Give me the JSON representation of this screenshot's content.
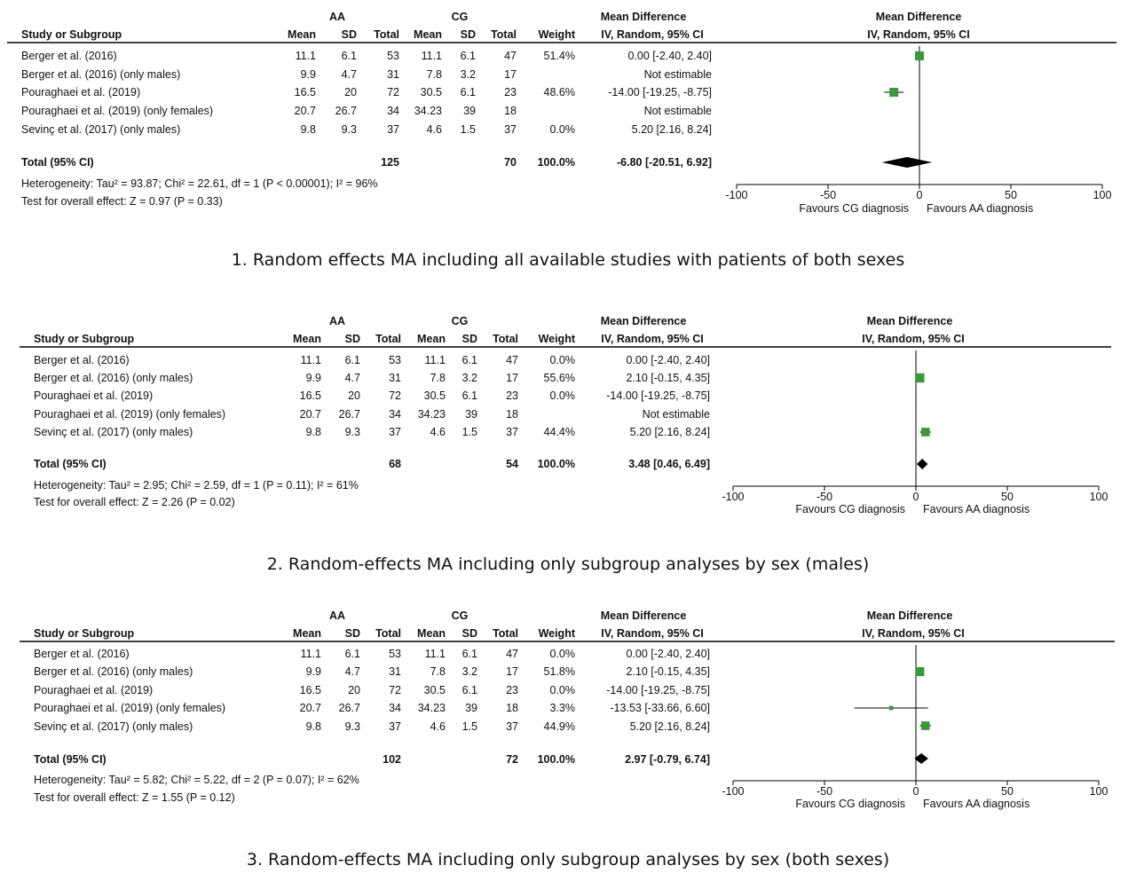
{
  "chart_data": [
    {
      "type": "forest",
      "caption": "1. Random effects MA including all available studies with patients of both sexes",
      "header": {
        "group_a": "AA",
        "group_b": "CG",
        "study_col": "Study or Subgroup",
        "mean": "Mean",
        "sd": "SD",
        "total": "Total",
        "weight": "Weight",
        "md_title": "Mean Difference",
        "md_method": "IV, Random, 95% CI"
      },
      "studies": [
        {
          "name": "Berger et al. (2016)",
          "a_mean": "11.1",
          "a_sd": "6.1",
          "a_total": "53",
          "b_mean": "11.1",
          "b_sd": "6.1",
          "b_total": "47",
          "weight": "51.4%",
          "ci_text": "0.00 [-2.40, 2.40]",
          "md": 0.0,
          "lo": -2.4,
          "hi": 2.4,
          "w": 51.4
        },
        {
          "name": "Berger et al. (2016) (only males)",
          "a_mean": "9.9",
          "a_sd": "4.7",
          "a_total": "31",
          "b_mean": "7.8",
          "b_sd": "3.2",
          "b_total": "17",
          "weight": "",
          "ci_text": "Not estimable",
          "md": null,
          "lo": null,
          "hi": null,
          "w": 0
        },
        {
          "name": "Pouraghaei et al. (2019)",
          "a_mean": "16.5",
          "a_sd": "20",
          "a_total": "72",
          "b_mean": "30.5",
          "b_sd": "6.1",
          "b_total": "23",
          "weight": "48.6%",
          "ci_text": "-14.00 [-19.25, -8.75]",
          "md": -14.0,
          "lo": -19.25,
          "hi": -8.75,
          "w": 48.6
        },
        {
          "name": "Pouraghaei et al. (2019) (only females)",
          "a_mean": "20.7",
          "a_sd": "26.7",
          "a_total": "34",
          "b_mean": "34.23",
          "b_sd": "39",
          "b_total": "18",
          "weight": "",
          "ci_text": "Not estimable",
          "md": null,
          "lo": null,
          "hi": null,
          "w": 0
        },
        {
          "name": "Sevinç et al. (2017) (only males)",
          "a_mean": "9.8",
          "a_sd": "9.3",
          "a_total": "37",
          "b_mean": "4.6",
          "b_sd": "1.5",
          "b_total": "37",
          "weight": "0.0%",
          "ci_text": "5.20 [2.16, 8.24]",
          "md": null,
          "lo": null,
          "hi": null,
          "w": 0
        }
      ],
      "total": {
        "label": "Total (95% CI)",
        "a_total": "125",
        "b_total": "70",
        "weight": "100.0%",
        "ci_text": "-6.80 [-20.51, 6.92]",
        "md": -6.8,
        "lo": -20.51,
        "hi": 6.92
      },
      "heterogeneity": "Heterogeneity: Tau² = 93.87; Chi² = 22.61, df = 1 (P < 0.00001); I² = 96%",
      "overall_effect": "Test for overall effect: Z = 0.97 (P = 0.33)",
      "axis": {
        "ticks": [
          "-100",
          "-50",
          "0",
          "50",
          "100"
        ],
        "tick_values": [
          -100,
          -50,
          0,
          50,
          100
        ],
        "xlim": [
          -100,
          100
        ],
        "favours_left": "Favours CG diagnosis",
        "favours_right": "Favours AA diagnosis"
      }
    },
    {
      "type": "forest",
      "caption": "2. Random-effects MA including only subgroup analyses by sex (males)",
      "header": {
        "group_a": "AA",
        "group_b": "CG",
        "study_col": "Study or Subgroup",
        "mean": "Mean",
        "sd": "SD",
        "total": "Total",
        "weight": "Weight",
        "md_title": "Mean Difference",
        "md_method": "IV, Random, 95% CI"
      },
      "studies": [
        {
          "name": "Berger et al. (2016)",
          "a_mean": "11.1",
          "a_sd": "6.1",
          "a_total": "53",
          "b_mean": "11.1",
          "b_sd": "6.1",
          "b_total": "47",
          "weight": "0.0%",
          "ci_text": "0.00 [-2.40, 2.40]",
          "md": null,
          "lo": null,
          "hi": null,
          "w": 0
        },
        {
          "name": "Berger et al. (2016) (only males)",
          "a_mean": "9.9",
          "a_sd": "4.7",
          "a_total": "31",
          "b_mean": "7.8",
          "b_sd": "3.2",
          "b_total": "17",
          "weight": "55.6%",
          "ci_text": "2.10 [-0.15, 4.35]",
          "md": 2.1,
          "lo": -0.15,
          "hi": 4.35,
          "w": 55.6
        },
        {
          "name": "Pouraghaei et al. (2019)",
          "a_mean": "16.5",
          "a_sd": "20",
          "a_total": "72",
          "b_mean": "30.5",
          "b_sd": "6.1",
          "b_total": "23",
          "weight": "0.0%",
          "ci_text": "-14.00 [-19.25, -8.75]",
          "md": null,
          "lo": null,
          "hi": null,
          "w": 0
        },
        {
          "name": "Pouraghaei et al. (2019) (only females)",
          "a_mean": "20.7",
          "a_sd": "26.7",
          "a_total": "34",
          "b_mean": "34.23",
          "b_sd": "39",
          "b_total": "18",
          "weight": "",
          "ci_text": "Not estimable",
          "md": null,
          "lo": null,
          "hi": null,
          "w": 0
        },
        {
          "name": "Sevinç et al. (2017) (only males)",
          "a_mean": "9.8",
          "a_sd": "9.3",
          "a_total": "37",
          "b_mean": "4.6",
          "b_sd": "1.5",
          "b_total": "37",
          "weight": "44.4%",
          "ci_text": "5.20 [2.16, 8.24]",
          "md": 5.2,
          "lo": 2.16,
          "hi": 8.24,
          "w": 44.4
        }
      ],
      "total": {
        "label": "Total (95% CI)",
        "a_total": "68",
        "b_total": "54",
        "weight": "100.0%",
        "ci_text": "3.48 [0.46, 6.49]",
        "md": 3.48,
        "lo": 0.46,
        "hi": 6.49
      },
      "heterogeneity": "Heterogeneity: Tau² = 2.95; Chi² = 2.59, df = 1 (P = 0.11); I² = 61%",
      "overall_effect": "Test for overall effect: Z = 2.26 (P = 0.02)",
      "axis": {
        "ticks": [
          "-100",
          "-50",
          "0",
          "50",
          "100"
        ],
        "tick_values": [
          -100,
          -50,
          0,
          50,
          100
        ],
        "xlim": [
          -100,
          100
        ],
        "favours_left": "Favours CG diagnosis",
        "favours_right": "Favours AA diagnosis"
      }
    },
    {
      "type": "forest",
      "caption": "3. Random-effects MA including only subgroup analyses by sex (both sexes)",
      "header": {
        "group_a": "AA",
        "group_b": "CG",
        "study_col": "Study or Subgroup",
        "mean": "Mean",
        "sd": "SD",
        "total": "Total",
        "weight": "Weight",
        "md_title": "Mean Difference",
        "md_method": "IV, Random, 95% CI"
      },
      "studies": [
        {
          "name": "Berger et al. (2016)",
          "a_mean": "11.1",
          "a_sd": "6.1",
          "a_total": "53",
          "b_mean": "11.1",
          "b_sd": "6.1",
          "b_total": "47",
          "weight": "0.0%",
          "ci_text": "0.00 [-2.40, 2.40]",
          "md": null,
          "lo": null,
          "hi": null,
          "w": 0
        },
        {
          "name": "Berger et al. (2016) (only males)",
          "a_mean": "9.9",
          "a_sd": "4.7",
          "a_total": "31",
          "b_mean": "7.8",
          "b_sd": "3.2",
          "b_total": "17",
          "weight": "51.8%",
          "ci_text": "2.10 [-0.15, 4.35]",
          "md": 2.1,
          "lo": -0.15,
          "hi": 4.35,
          "w": 51.8
        },
        {
          "name": "Pouraghaei et al. (2019)",
          "a_mean": "16.5",
          "a_sd": "20",
          "a_total": "72",
          "b_mean": "30.5",
          "b_sd": "6.1",
          "b_total": "23",
          "weight": "0.0%",
          "ci_text": "-14.00 [-19.25, -8.75]",
          "md": null,
          "lo": null,
          "hi": null,
          "w": 0
        },
        {
          "name": "Pouraghaei et al. (2019) (only females)",
          "a_mean": "20.7",
          "a_sd": "26.7",
          "a_total": "34",
          "b_mean": "34.23",
          "b_sd": "39",
          "b_total": "18",
          "weight": "3.3%",
          "ci_text": "-13.53 [-33.66, 6.60]",
          "md": -13.53,
          "lo": -33.66,
          "hi": 6.6,
          "w": 3.3
        },
        {
          "name": "Sevinç et al. (2017) (only males)",
          "a_mean": "9.8",
          "a_sd": "9.3",
          "a_total": "37",
          "b_mean": "4.6",
          "b_sd": "1.5",
          "b_total": "37",
          "weight": "44.9%",
          "ci_text": "5.20 [2.16, 8.24]",
          "md": 5.2,
          "lo": 2.16,
          "hi": 8.24,
          "w": 44.9
        }
      ],
      "total": {
        "label": "Total (95% CI)",
        "a_total": "102",
        "b_total": "72",
        "weight": "100.0%",
        "ci_text": "2.97 [-0.79, 6.74]",
        "md": 2.97,
        "lo": -0.79,
        "hi": 6.74
      },
      "heterogeneity": "Heterogeneity: Tau² = 5.82; Chi² = 5.22, df = 2 (P = 0.07); I² = 62%",
      "overall_effect": "Test for overall effect: Z = 1.55 (P = 0.12)",
      "axis": {
        "ticks": [
          "-100",
          "-50",
          "0",
          "50",
          "100"
        ],
        "tick_values": [
          -100,
          -50,
          0,
          50,
          100
        ],
        "xlim": [
          -100,
          100
        ],
        "favours_left": "Favours CG diagnosis",
        "favours_right": "Favours AA diagnosis"
      }
    }
  ],
  "colors": {
    "marker": "#3a9a3a",
    "diamond": "#000000",
    "line": "#000000",
    "text": "#111111"
  }
}
